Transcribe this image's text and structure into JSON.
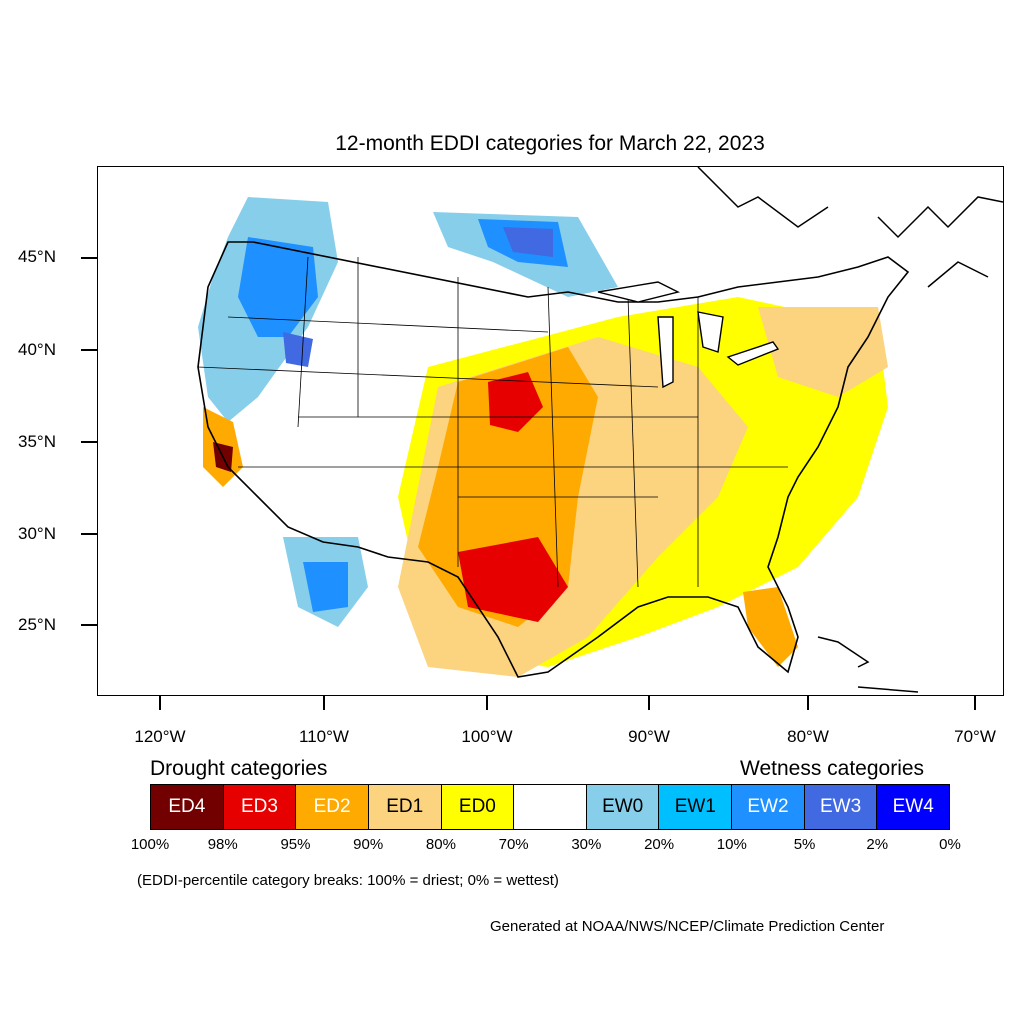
{
  "title": "12-month EDDI categories for March 22, 2023",
  "map": {
    "region": "Contiguous United States",
    "lat_labels": [
      "45°N",
      "40°N",
      "35°N",
      "30°N",
      "25°N"
    ],
    "lon_labels": [
      "120°W",
      "110°W",
      "100°W",
      "90°W",
      "80°W",
      "70°W"
    ]
  },
  "legend": {
    "drought_heading": "Drought categories",
    "wetness_heading": "Wetness categories",
    "categories": [
      {
        "label": "ED4",
        "color": "#730000",
        "text_color": "#ffffff"
      },
      {
        "label": "ED3",
        "color": "#e60000",
        "text_color": "#ffffff"
      },
      {
        "label": "ED2",
        "color": "#ffaa00",
        "text_color": "#ffffff"
      },
      {
        "label": "ED1",
        "color": "#fcd37f",
        "text_color": "#000000"
      },
      {
        "label": "ED0",
        "color": "#ffff00",
        "text_color": "#000000"
      },
      {
        "label": "",
        "color": "#ffffff",
        "text_color": "#000000"
      },
      {
        "label": "EW0",
        "color": "#87ceeb",
        "text_color": "#000000"
      },
      {
        "label": "EW1",
        "color": "#00bfff",
        "text_color": "#000000"
      },
      {
        "label": "EW2",
        "color": "#1e90ff",
        "text_color": "#ffffff"
      },
      {
        "label": "EW3",
        "color": "#4169e1",
        "text_color": "#ffffff"
      },
      {
        "label": "EW4",
        "color": "#0000ff",
        "text_color": "#ffffff"
      }
    ],
    "breaks": [
      "100%",
      "98%",
      "95%",
      "90%",
      "80%",
      "70%",
      "30%",
      "20%",
      "10%",
      "5%",
      "2%",
      "0%"
    ]
  },
  "note": "(EDDI-percentile category breaks: 100% = driest; 0% = wettest)",
  "credit": "Generated at NOAA/NWS/NCEP/Climate Prediction Center"
}
